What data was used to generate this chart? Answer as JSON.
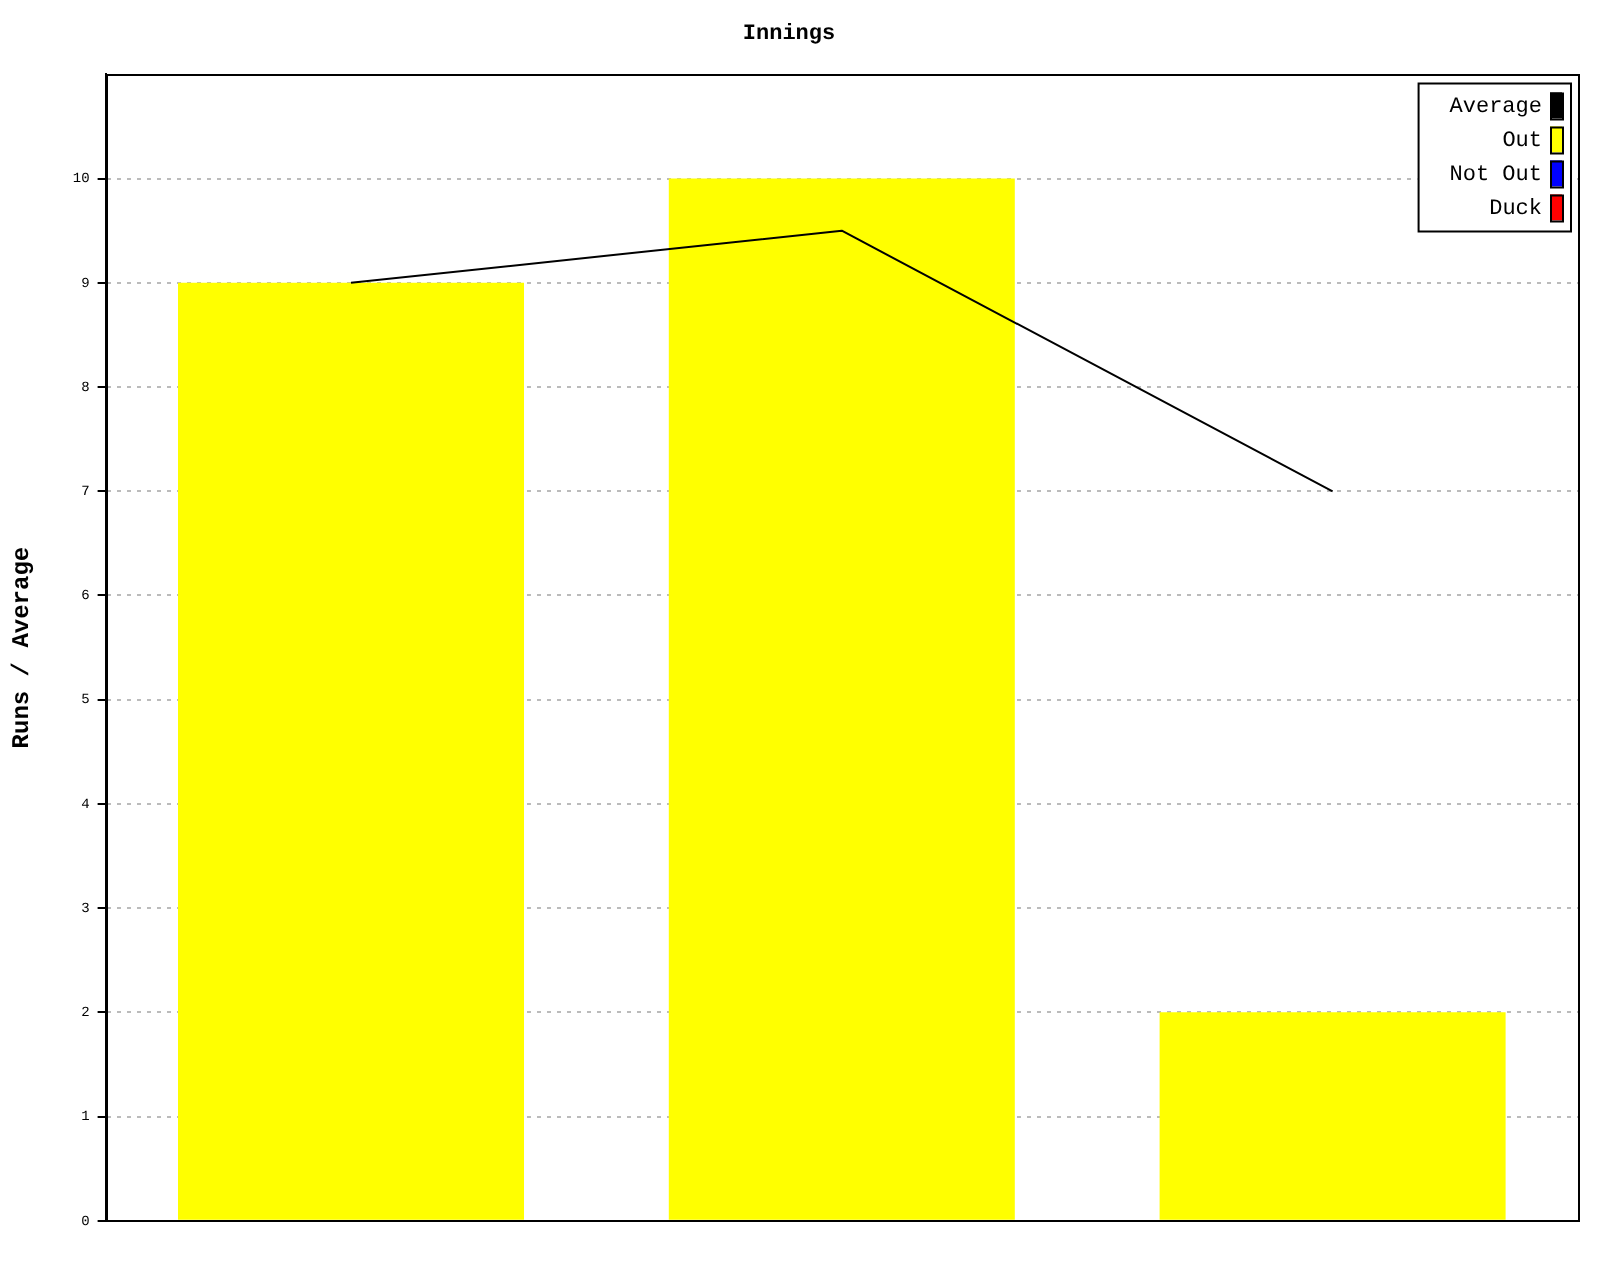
{
  "chart_data": {
    "type": "bar",
    "title": "Innings",
    "ylabel": "Runs / Average",
    "categories": [
      null,
      null,
      null
    ],
    "series": [
      {
        "name": "Average",
        "type": "line",
        "color": "#000000",
        "values": [
          9,
          9.5,
          7
        ]
      },
      {
        "name": "Out",
        "color": "#ffff00",
        "values": [
          9,
          10,
          2
        ]
      },
      {
        "name": "Not Out",
        "color": "#0000ff",
        "values": [
          null,
          null,
          null
        ]
      },
      {
        "name": "Duck",
        "color": "#ff0000",
        "values": [
          null,
          null,
          null
        ]
      }
    ],
    "ylim": [
      0,
      11
    ],
    "yticks": [
      0,
      1,
      2,
      3,
      4,
      5,
      6,
      7,
      8,
      9,
      10
    ],
    "grid": "y",
    "legend": "top right",
    "marker": "none"
  }
}
